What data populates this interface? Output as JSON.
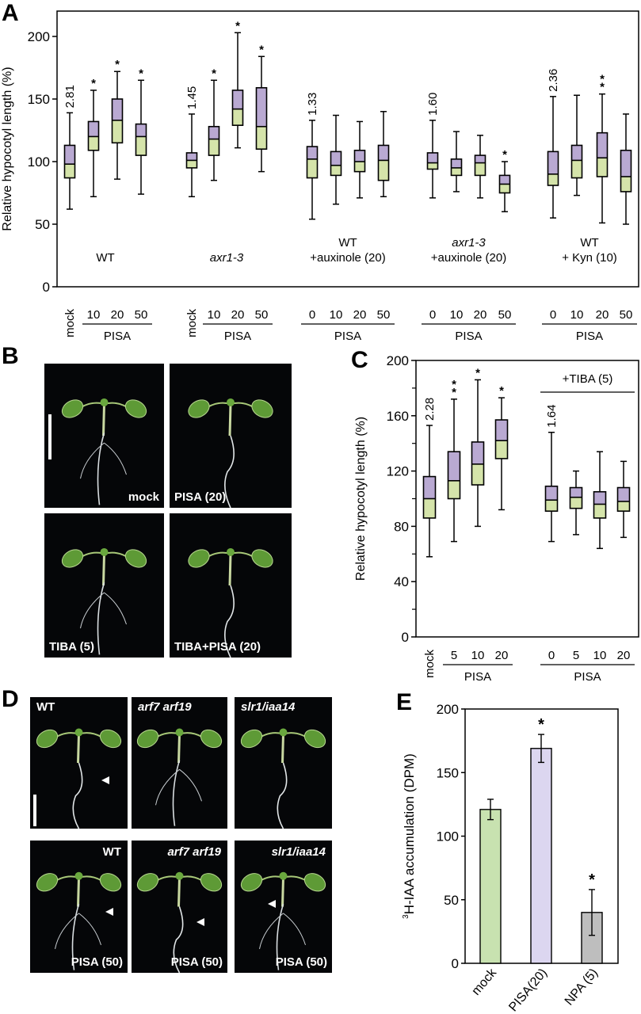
{
  "panels": {
    "A": {
      "letter": "A"
    },
    "B": {
      "letter": "B"
    },
    "C": {
      "letter": "C"
    },
    "D": {
      "letter": "D"
    },
    "E": {
      "letter": "E"
    }
  },
  "photos_B": [
    {
      "label": "mock",
      "italic": false,
      "pos": "br"
    },
    {
      "label": "PISA (20)",
      "italic": false,
      "pos": "bl"
    },
    {
      "label": "TIBA (5)",
      "italic": false,
      "pos": "bl"
    },
    {
      "label": "TIBA+PISA (20)",
      "italic": false,
      "pos": "bl"
    }
  ],
  "photos_D": [
    {
      "label": "WT",
      "italic": false,
      "pos": "tl"
    },
    {
      "label": "arf7 arf19",
      "italic": true,
      "pos": "tl"
    },
    {
      "label": "slr1/iaa14",
      "italic": true,
      "pos": "tl"
    },
    {
      "label": "WT",
      "italic": false,
      "pos": "tr",
      "sublabel": "PISA (50)"
    },
    {
      "label": "arf7 arf19",
      "italic": true,
      "pos": "tr",
      "sublabel": "PISA (50)"
    },
    {
      "label": "slr1/iaa14",
      "italic": true,
      "pos": "tr",
      "sublabel": "PISA (50)"
    }
  ],
  "colors": {
    "upper_box": "#b9a9d2",
    "lower_box": "#d5e4aa",
    "bar_mock": "#c8e2b0",
    "bar_pisa": "#dcd6f0",
    "bar_npa": "#bebebe"
  },
  "chart_data": [
    {
      "panel": "A",
      "type": "box",
      "title": "",
      "ylabel": "Relative hypocotyl length (%)",
      "ylim": [
        0,
        220
      ],
      "yticks": [
        0,
        50,
        100,
        150,
        200
      ],
      "groups": [
        {
          "name": "WT",
          "italic": false,
          "xlabel": "PISA",
          "ratio": "2.81",
          "categories": [
            "mock",
            "10",
            "20",
            "50"
          ],
          "boxes": [
            {
              "min": 62,
              "q1": 87,
              "median": 98,
              "q3": 113,
              "max": 139,
              "sig": ""
            },
            {
              "min": 72,
              "q1": 109,
              "median": 120,
              "q3": 132,
              "max": 157,
              "sig": "*"
            },
            {
              "min": 86,
              "q1": 115,
              "median": 133,
              "q3": 150,
              "max": 172,
              "sig": "*"
            },
            {
              "min": 74,
              "q1": 105,
              "median": 120,
              "q3": 130,
              "max": 165,
              "sig": "*"
            }
          ]
        },
        {
          "name": "axr1-3",
          "italic": true,
          "xlabel": "PISA",
          "ratio": "1.45",
          "categories": [
            "mock",
            "10",
            "20",
            "50"
          ],
          "boxes": [
            {
              "min": 72,
              "q1": 95,
              "median": 101,
              "q3": 107,
              "max": 138,
              "sig": ""
            },
            {
              "min": 85,
              "q1": 105,
              "median": 118,
              "q3": 128,
              "max": 165,
              "sig": "*"
            },
            {
              "min": 111,
              "q1": 129,
              "median": 142,
              "q3": 157,
              "max": 203,
              "sig": "*"
            },
            {
              "min": 92,
              "q1": 110,
              "median": 128,
              "q3": 159,
              "max": 184,
              "sig": "*"
            }
          ]
        },
        {
          "name": "WT\n+auxinole (20)",
          "italic": false,
          "xlabel": "PISA",
          "ratio": "1.33",
          "categories": [
            "0",
            "10",
            "20",
            "50"
          ],
          "boxes": [
            {
              "min": 54,
              "q1": 87,
              "median": 102,
              "q3": 112,
              "max": 133,
              "sig": ""
            },
            {
              "min": 66,
              "q1": 89,
              "median": 97,
              "q3": 108,
              "max": 137,
              "sig": ""
            },
            {
              "min": 71,
              "q1": 92,
              "median": 100,
              "q3": 109,
              "max": 132,
              "sig": ""
            },
            {
              "min": 72,
              "q1": 85,
              "median": 101,
              "q3": 113,
              "max": 140,
              "sig": ""
            }
          ]
        },
        {
          "name": "axr1-3\n+auxinole (20)",
          "italic": true,
          "xlabel": "PISA",
          "ratio": "1.60",
          "categories": [
            "0",
            "10",
            "20",
            "50"
          ],
          "boxes": [
            {
              "min": 71,
              "q1": 94,
              "median": 99,
              "q3": 107,
              "max": 133,
              "sig": ""
            },
            {
              "min": 76,
              "q1": 89,
              "median": 95,
              "q3": 102,
              "max": 124,
              "sig": ""
            },
            {
              "min": 71,
              "q1": 89,
              "median": 99,
              "q3": 105,
              "max": 121,
              "sig": ""
            },
            {
              "min": 60,
              "q1": 75,
              "median": 82,
              "q3": 89,
              "max": 100,
              "sig": "*"
            }
          ]
        },
        {
          "name": "WT\n+ Kyn (10)",
          "italic": false,
          "xlabel": "PISA",
          "ratio": "2.36",
          "categories": [
            "0",
            "10",
            "20",
            "50"
          ],
          "boxes": [
            {
              "min": 55,
              "q1": 81,
              "median": 90,
              "q3": 108,
              "max": 152,
              "sig": ""
            },
            {
              "min": 73,
              "q1": 87,
              "median": 101,
              "q3": 113,
              "max": 153,
              "sig": ""
            },
            {
              "min": 51,
              "q1": 88,
              "median": 103,
              "q3": 123,
              "max": 154,
              "sig": "**"
            },
            {
              "min": 50,
              "q1": 76,
              "median": 88,
              "q3": 109,
              "max": 138,
              "sig": ""
            }
          ]
        }
      ],
      "legend": null,
      "grid": false
    },
    {
      "panel": "C",
      "type": "box",
      "title": "",
      "ylabel": "Relative hypocotyl length (%)",
      "ylim": [
        0,
        200
      ],
      "yticks": [
        0,
        40,
        80,
        120,
        160,
        200
      ],
      "minor_yticks": [
        20,
        60,
        100,
        140,
        180
      ],
      "groups": [
        {
          "name": "",
          "xlabel": "PISA",
          "ratio": "2.28",
          "categories": [
            "mock",
            "5",
            "10",
            "20"
          ],
          "boxes": [
            {
              "min": 58,
              "q1": 86,
              "median": 100,
              "q3": 116,
              "max": 153,
              "sig": ""
            },
            {
              "min": 69,
              "q1": 100,
              "median": 113,
              "q3": 134,
              "max": 172,
              "sig": "**"
            },
            {
              "min": 80,
              "q1": 110,
              "median": 125,
              "q3": 141,
              "max": 186,
              "sig": "*"
            },
            {
              "min": 92,
              "q1": 129,
              "median": 142,
              "q3": 157,
              "max": 173,
              "sig": "*"
            }
          ]
        },
        {
          "name": "+TIBA (5)",
          "xlabel": "PISA",
          "ratio": "1.64",
          "categories": [
            "0",
            "5",
            "10",
            "20"
          ],
          "boxes": [
            {
              "min": 69,
              "q1": 91,
              "median": 99,
              "q3": 109,
              "max": 148,
              "sig": ""
            },
            {
              "min": 74,
              "q1": 93,
              "median": 101,
              "q3": 108,
              "max": 120,
              "sig": ""
            },
            {
              "min": 64,
              "q1": 86,
              "median": 96,
              "q3": 105,
              "max": 134,
              "sig": ""
            },
            {
              "min": 72,
              "q1": 91,
              "median": 98,
              "q3": 108,
              "max": 127,
              "sig": ""
            }
          ]
        }
      ],
      "grid": false
    },
    {
      "panel": "E",
      "type": "bar",
      "title": "",
      "ylabel": "³H-IAA accumulation (DPM)",
      "ylabel_sup": "3",
      "ylabel_main": "H-IAA accumulation (DPM)",
      "ylim": [
        0,
        200
      ],
      "yticks": [
        0,
        50,
        100,
        150,
        200
      ],
      "categories": [
        "mock",
        "PISA(20)",
        "NPA (5)"
      ],
      "values": [
        121,
        169,
        40
      ],
      "errors": [
        8,
        11,
        18
      ],
      "sig": [
        "",
        "*",
        "*"
      ],
      "grid": false
    }
  ]
}
